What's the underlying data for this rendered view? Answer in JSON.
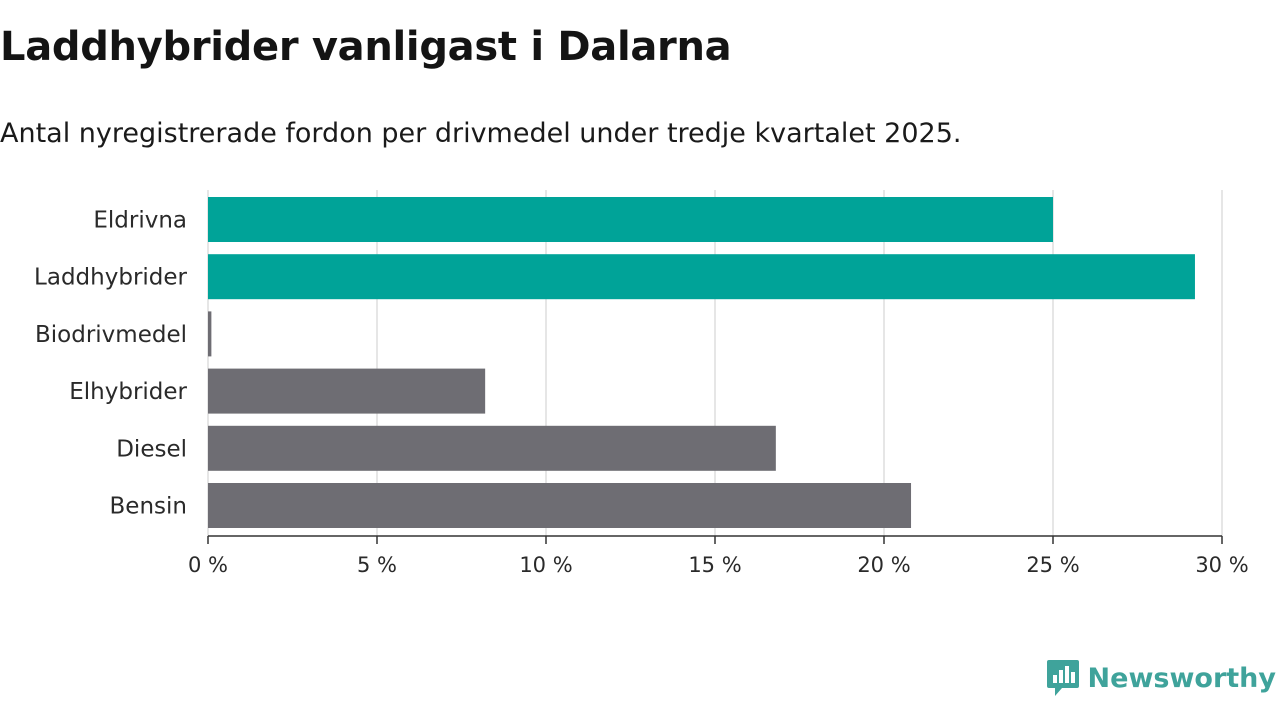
{
  "header": {
    "title": "Laddhybrider vanligast i Dalarna",
    "subtitle": "Antal nyregistrerade fordon per drivmedel under tredje kvartalet 2025."
  },
  "chart_data": {
    "type": "bar",
    "orientation": "horizontal",
    "categories": [
      "Eldrivna",
      "Laddhybrider",
      "Biodrivmedel",
      "Elhybrider",
      "Diesel",
      "Bensin"
    ],
    "values": [
      25.0,
      29.2,
      0.1,
      8.2,
      16.8,
      20.8
    ],
    "highlight": [
      true,
      true,
      false,
      false,
      false,
      false
    ],
    "xlim": [
      0,
      30
    ],
    "xticks": [
      0,
      5,
      10,
      15,
      20,
      25,
      30
    ],
    "xtick_labels": [
      "0 %",
      "5 %",
      "10 %",
      "15 %",
      "20 %",
      "25 %",
      "30 %"
    ],
    "grid": true,
    "colors": {
      "highlight": "#00a398",
      "default": "#6e6d73",
      "grid": "#dddddd",
      "axis": "#333333"
    }
  },
  "branding": {
    "name": "Newsworthy",
    "icon": "newsworthy-logo-icon",
    "color": "#3fa39b"
  }
}
